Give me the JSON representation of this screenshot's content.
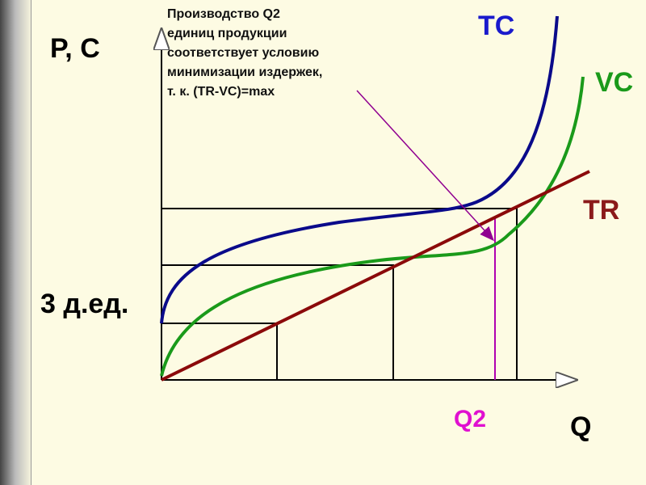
{
  "y_axis_label": "P, C",
  "x_axis_label": "Q",
  "fixed_cost_label": "3 д.ед.",
  "annotation": [
    "Производство Q2",
    "единиц продукции",
    "соответствует условию",
    "минимизации издержек,",
    "т. к. (TR-VC)=max"
  ],
  "curves": {
    "tc": "TC",
    "vc": "VC",
    "tr": "TR"
  },
  "q2_label": "Q2"
}
